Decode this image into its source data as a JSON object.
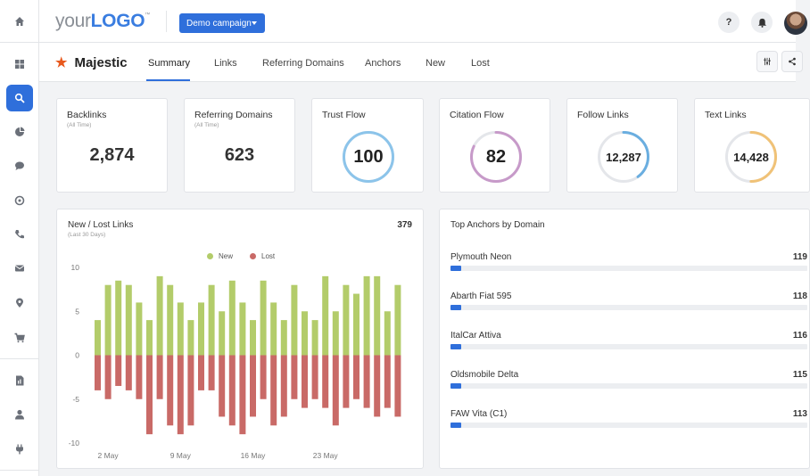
{
  "header": {
    "logo_prefix": "your",
    "logo_bold": "LOGO",
    "logo_tm": "™",
    "campaign": "Demo campaign",
    "help": "?"
  },
  "rail": {
    "icons": [
      "home-icon",
      "dashboard-icon",
      "search-icon",
      "pie-chart-icon",
      "chat-icon",
      "chat-bubble-icon",
      "phone-icon",
      "mail-icon",
      "location-icon",
      "cart-icon",
      "report-icon",
      "user-icon",
      "plug-icon"
    ],
    "active": "search-icon"
  },
  "subnav": {
    "brand": "Majestic",
    "tabs": [
      "Summary",
      "Links",
      "Referring Domains",
      "Anchors",
      "New",
      "Lost"
    ],
    "active_tab": "Summary"
  },
  "stats": [
    {
      "title": "Backlinks",
      "sub": "(All Time)",
      "value": "2,874"
    },
    {
      "title": "Referring Domains",
      "sub": "(All Time)",
      "value": "623"
    },
    {
      "title": "Trust Flow",
      "value": "100",
      "level": 100,
      "color": "#8cc4ea"
    },
    {
      "title": "Citation Flow",
      "value": "82",
      "level": 82,
      "color": "#c79ac9"
    },
    {
      "title": "Follow Links",
      "value": "12,287",
      "level": 40,
      "color": "#6aaee0"
    },
    {
      "title": "Text Links",
      "value": "14,428",
      "level": 50,
      "color": "#f0c277"
    }
  ],
  "new_lost": {
    "title": "New / Lost Links",
    "sub": "(Last 30 Days)",
    "total": "379",
    "legend": [
      "New",
      "Lost"
    ]
  },
  "chart_data": {
    "type": "bar",
    "series": [
      {
        "name": "New",
        "color": "#b3cc6a",
        "values": [
          4,
          8,
          8.5,
          8,
          6,
          4,
          9,
          8,
          6,
          4,
          6,
          8,
          5,
          8.5,
          6,
          4,
          8.5,
          6,
          4,
          8,
          5,
          4,
          9,
          5,
          8,
          7,
          9,
          9,
          5,
          8
        ]
      },
      {
        "name": "Lost",
        "color": "#c96a67",
        "values": [
          -4,
          -5,
          -3.5,
          -4,
          -5,
          -9,
          -5,
          -8,
          -9,
          -8,
          -4,
          -4,
          -7,
          -8,
          -9,
          -7,
          -5,
          -8,
          -7,
          -5,
          -6,
          -5,
          -6,
          -8,
          -6,
          -5,
          -6,
          -7,
          -6,
          -7
        ]
      }
    ],
    "x_ticks": [
      "2 May",
      "9 May",
      "16 May",
      "23 May"
    ],
    "y_ticks": [
      "10",
      "5",
      "0",
      "-5",
      "-10"
    ],
    "ylim": [
      -10,
      10
    ]
  },
  "anchors": {
    "title": "Top Anchors by Domain",
    "items": [
      {
        "name": "Plymouth Neon",
        "value": "119"
      },
      {
        "name": "Abarth Fiat 595",
        "value": "118"
      },
      {
        "name": "ItalCar Attiva",
        "value": "116"
      },
      {
        "name": "Oldsmobile Delta",
        "value": "115"
      },
      {
        "name": "FAW Vita (C1)",
        "value": "113"
      }
    ]
  },
  "colors": {
    "accent": "#2f6fdb",
    "brand_star": "#e8591d"
  }
}
